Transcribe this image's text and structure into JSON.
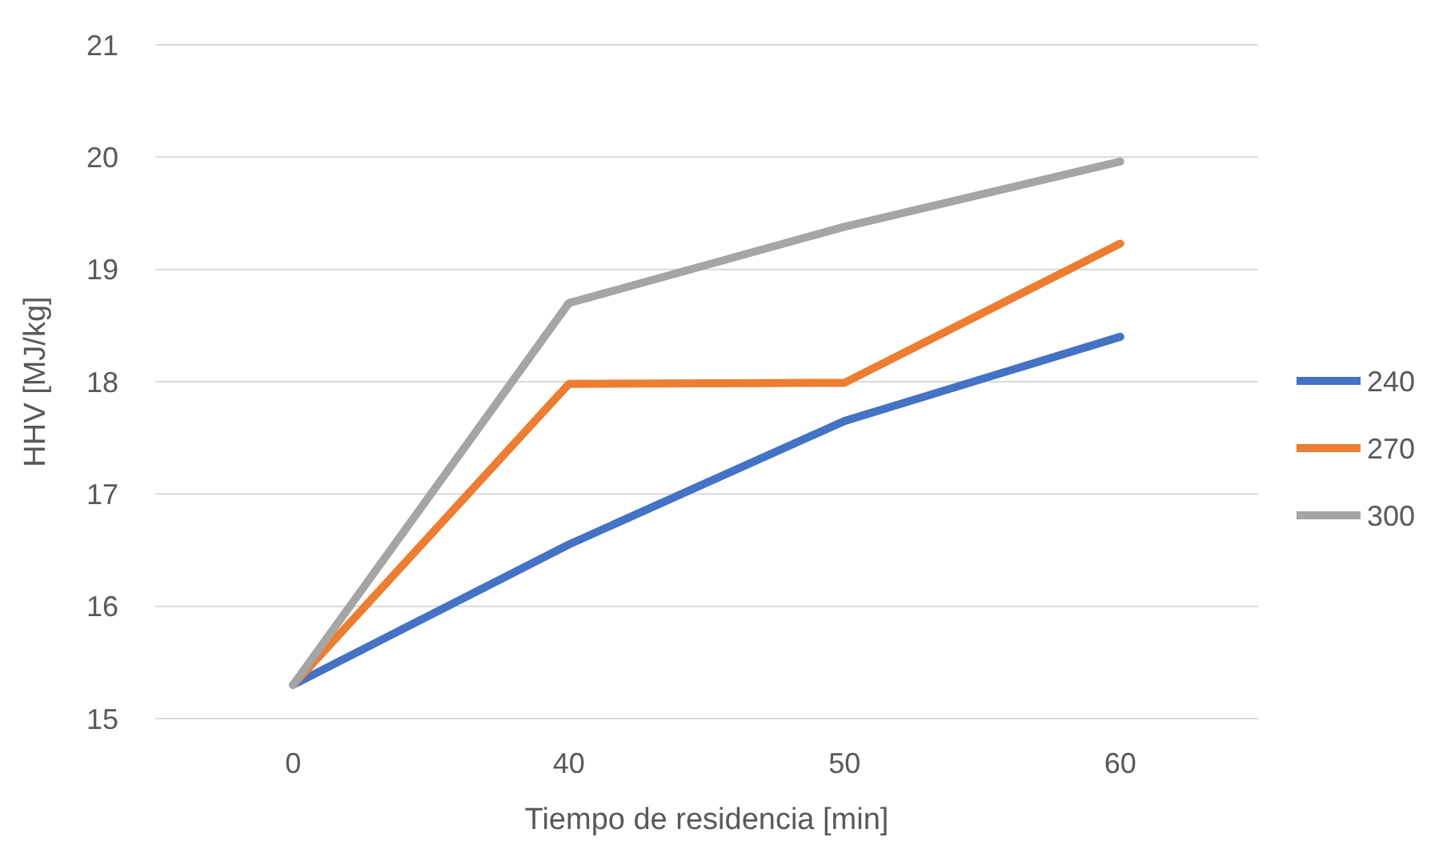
{
  "chart_data": {
    "type": "line",
    "xlabel": "Tiempo de residencia [min]",
    "ylabel": "HHV [MJ/kg]",
    "categories": [
      "0",
      "40",
      "50",
      "60"
    ],
    "series": [
      {
        "name": "240",
        "color": "#4472c4",
        "values": [
          15.3,
          16.55,
          17.65,
          18.4
        ]
      },
      {
        "name": "270",
        "color": "#ed7d31",
        "values": [
          15.3,
          17.98,
          17.99,
          19.23
        ]
      },
      {
        "name": "300",
        "color": "#a5a5a5",
        "values": [
          15.3,
          18.7,
          19.38,
          19.96
        ]
      }
    ],
    "ylim": [
      15,
      21
    ],
    "yticks": [
      15,
      16,
      17,
      18,
      19,
      20,
      21
    ],
    "grid": "y",
    "legend": "right",
    "marker": "none",
    "line_style": "solid"
  }
}
